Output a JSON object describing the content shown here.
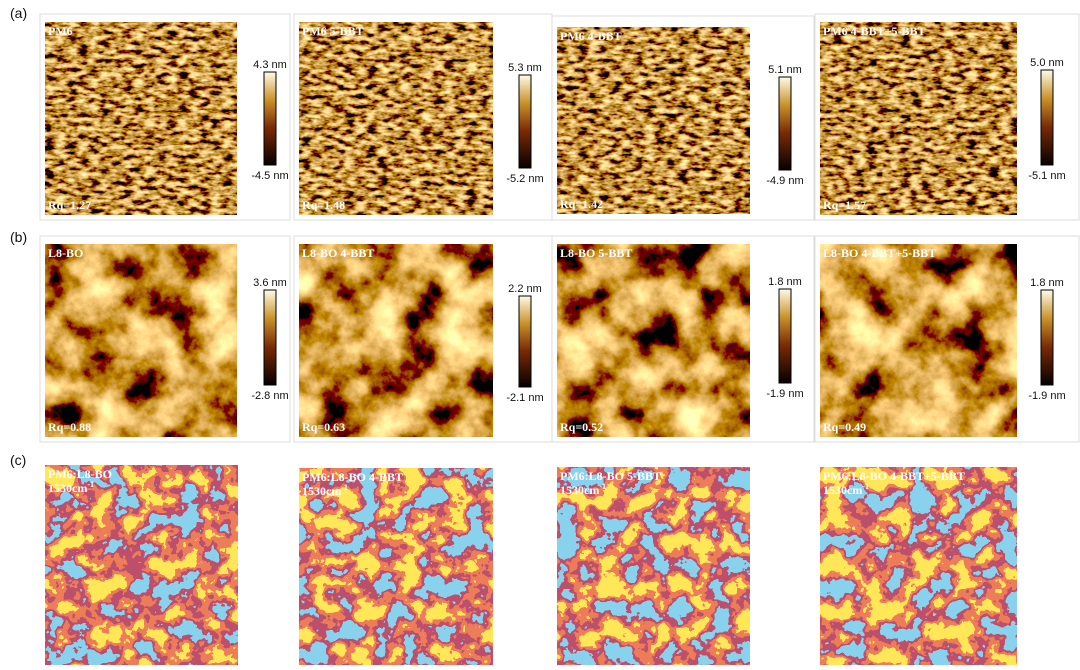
{
  "panels": [
    {
      "label": "(a)",
      "images": [
        {
          "title": "PM6",
          "rq": "Rq=1.27",
          "scale_max": "4.3 nm",
          "scale_min": "-4.5 nm"
        },
        {
          "title": "PM6 5-BBT",
          "rq": "Rq=1.48",
          "scale_max": "5.3 nm",
          "scale_min": "-5.2 nm"
        },
        {
          "title": "PM6 4-BBT",
          "rq": "Rq=1.42",
          "scale_max": "5.1 nm",
          "scale_min": "-4.9 nm"
        },
        {
          "title": "PM6 4-BBT+5-BBT",
          "rq": "Rq=1.57",
          "scale_max": "5.0 nm",
          "scale_min": "-5.1 nm"
        }
      ]
    },
    {
      "label": "(b)",
      "images": [
        {
          "title": "L8-BO",
          "rq": "Rq=0.88",
          "scale_max": "3.6 nm",
          "scale_min": "-2.8 nm"
        },
        {
          "title": "L8-BO 4-BBT",
          "rq": "Rq=0.63",
          "scale_max": "2.2 nm",
          "scale_min": "-2.1 nm"
        },
        {
          "title": "L8-BO 5-BBT",
          "rq": "Rq=0.52",
          "scale_max": "1.8 nm",
          "scale_min": "-1.9 nm"
        },
        {
          "title": "L8-BO 4-BBT+5-BBT",
          "rq": "Rq=0.49",
          "scale_max": "1.8 nm",
          "scale_min": "-1.9 nm"
        }
      ]
    },
    {
      "label": "(c)",
      "images": [
        {
          "title": "PM6:L8-BO",
          "wavenumber": "1530cm",
          "exponent": "-1"
        },
        {
          "title": "PM6:L8-BO 4-BBT",
          "wavenumber": "1530cm",
          "exponent": "-1"
        },
        {
          "title": "PM6:L8-BO 5-BBT",
          "wavenumber": "1530cm",
          "exponent": "-1"
        },
        {
          "title": "PM6:L8-BO 4-BBT+5-BBT",
          "wavenumber": "1530cm",
          "exponent": "-1"
        }
      ]
    }
  ]
}
